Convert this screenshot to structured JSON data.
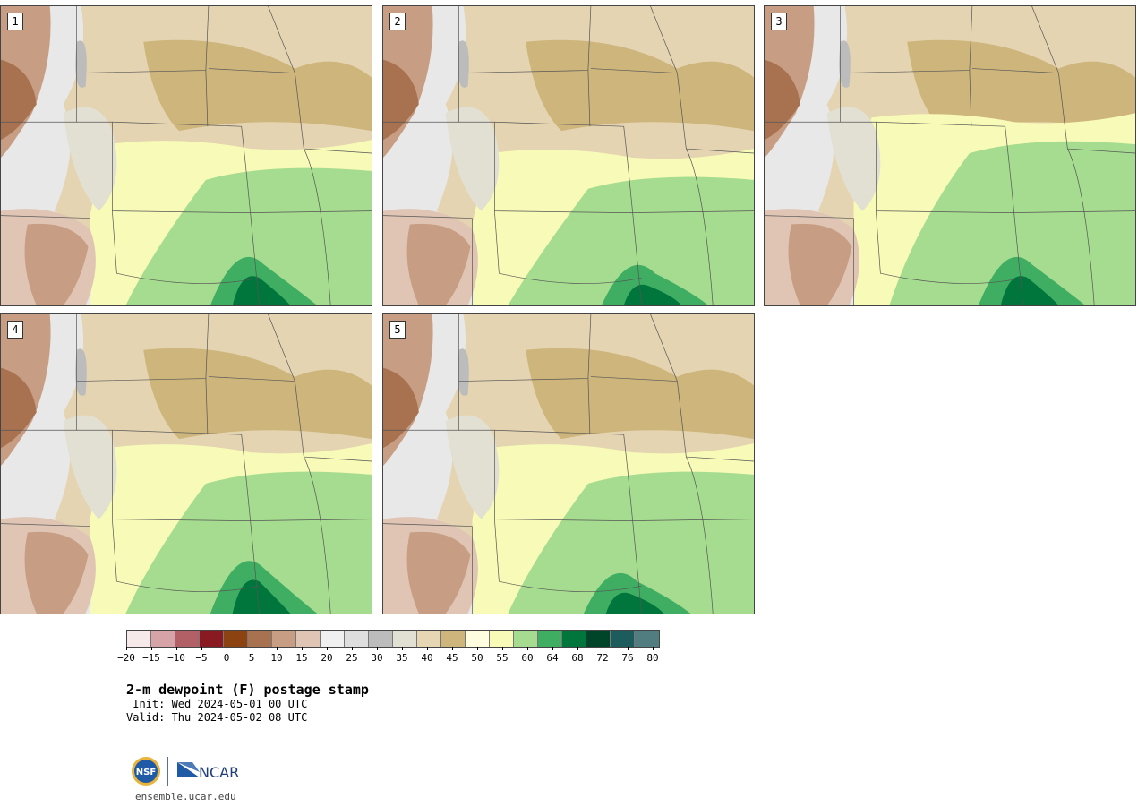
{
  "panels": [
    {
      "label": "1"
    },
    {
      "label": "2"
    },
    {
      "label": "3"
    },
    {
      "label": "4"
    },
    {
      "label": "5"
    }
  ],
  "colorbar": {
    "colors": [
      "#f5e9e9",
      "#d6a3a8",
      "#b35f66",
      "#8a1a22",
      "#8c4311",
      "#a87250",
      "#c79e84",
      "#e0c5b5",
      "#f0f0f0",
      "#dedede",
      "#bcbcbc",
      "#e2e0d2",
      "#e7d6b3",
      "#cdb57c",
      "#fffde0",
      "#f8fbb7",
      "#a6dc8f",
      "#3fae63",
      "#00753c",
      "#00442a",
      "#1d5c5c",
      "#517c80"
    ],
    "tick_labels": [
      "−20",
      "−15",
      "−10",
      "−5",
      "0",
      "5",
      "10",
      "15",
      "20",
      "25",
      "30",
      "35",
      "40",
      "45",
      "50",
      "55",
      "60",
      "64",
      "68",
      "72",
      "76",
      "80"
    ]
  },
  "title": "2-m dewpoint (F) postage stamp",
  "init": " Init: Wed 2024-05-01 00 UTC",
  "valid": "Valid: Thu 2024-05-02 08 UTC",
  "logo": {
    "left": "NSF",
    "right": "NCAR"
  },
  "website": "ensemble.ucar.edu"
}
